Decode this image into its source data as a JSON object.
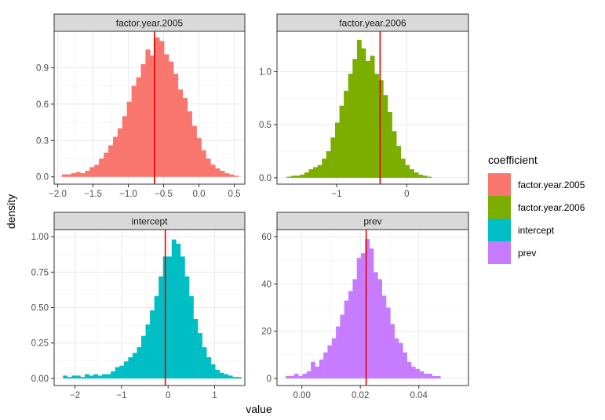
{
  "axes": {
    "xlabel": "value",
    "ylabel": "density"
  },
  "legend": {
    "title": "coefficient",
    "placement": "right",
    "items": [
      {
        "label": "factor.year.2005",
        "color": "#F8766D"
      },
      {
        "label": "factor.year.2006",
        "color": "#7CAE00"
      },
      {
        "label": "intercept",
        "color": "#00BFC4"
      },
      {
        "label": "prev",
        "color": "#C77CFF"
      }
    ]
  },
  "chart_data": [
    {
      "type": "bar",
      "title": "factor.year.2005",
      "color": "#F8766D",
      "vline": -0.63,
      "xlim": [
        -2.05,
        0.65
      ],
      "ylim": [
        -0.06,
        1.2
      ],
      "xticks": [
        -2.0,
        -1.5,
        -1.0,
        -0.5,
        0.0,
        0.5
      ],
      "xtick_labels": [
        "−2.0",
        "−1.5",
        "−1.0",
        "−0.5",
        "0.0",
        "0.5"
      ],
      "yticks": [
        0.0,
        0.3,
        0.6,
        0.9
      ],
      "ytick_labels": [
        "0.0",
        "0.3",
        "0.6",
        "0.9"
      ],
      "bin_width": 0.0658,
      "bins_start": -1.941,
      "values": [
        0.02,
        0.02,
        0.03,
        0.04,
        0.03,
        0.05,
        0.08,
        0.1,
        0.15,
        0.2,
        0.26,
        0.33,
        0.4,
        0.5,
        0.62,
        0.75,
        0.82,
        0.93,
        1.05,
        1.0,
        1.15,
        1.12,
        1.01,
        0.95,
        0.85,
        0.72,
        0.65,
        0.54,
        0.42,
        0.32,
        0.22,
        0.15,
        0.1,
        0.07,
        0.05,
        0.03,
        0.02,
        0.01
      ]
    },
    {
      "type": "bar",
      "title": "factor.year.2006",
      "color": "#7CAE00",
      "vline": -0.38,
      "xlim": [
        -1.85,
        0.88
      ],
      "ylim": [
        -0.06,
        1.38
      ],
      "xticks": [
        -1,
        0
      ],
      "xtick_labels": [
        "−1",
        "0"
      ],
      "yticks": [
        0.0,
        0.5,
        1.0
      ],
      "ytick_labels": [
        "0.0",
        "0.5",
        "1.0"
      ],
      "bin_width": 0.0625,
      "bins_start": -1.71,
      "values": [
        0.01,
        0.02,
        0.02,
        0.03,
        0.05,
        0.08,
        0.1,
        0.12,
        0.18,
        0.25,
        0.38,
        0.52,
        0.68,
        0.82,
        0.98,
        1.12,
        1.3,
        1.22,
        1.1,
        1.15,
        0.98,
        0.92,
        0.78,
        0.62,
        0.44,
        0.3,
        0.18,
        0.12,
        0.08,
        0.05,
        0.03,
        0.02,
        0.01
      ]
    },
    {
      "type": "bar",
      "title": "intercept",
      "color": "#00BFC4",
      "vline": -0.06,
      "xlim": [
        -2.45,
        1.65
      ],
      "ylim": [
        -0.05,
        1.05
      ],
      "xticks": [
        -2,
        -1,
        0,
        1
      ],
      "xtick_labels": [
        "−2",
        "−1",
        "0",
        "1"
      ],
      "yticks": [
        0.0,
        0.25,
        0.5,
        0.75,
        1.0
      ],
      "ytick_labels": [
        "0.00",
        "0.25",
        "0.50",
        "0.75",
        "1.00"
      ],
      "bin_width": 0.0935,
      "bins_start": -2.26,
      "values": [
        0.02,
        0.01,
        0.02,
        0.02,
        0.01,
        0.03,
        0.02,
        0.03,
        0.02,
        0.03,
        0.03,
        0.05,
        0.08,
        0.09,
        0.12,
        0.15,
        0.18,
        0.22,
        0.3,
        0.38,
        0.48,
        0.58,
        0.72,
        0.86,
        0.86,
        0.98,
        0.95,
        0.86,
        0.72,
        0.58,
        0.42,
        0.32,
        0.22,
        0.15,
        0.1,
        0.06,
        0.04,
        0.03,
        0.02,
        0.01,
        0.01
      ]
    },
    {
      "type": "bar",
      "title": "prev",
      "color": "#C77CFF",
      "vline": 0.022,
      "xlim": [
        -0.0085,
        0.057
      ],
      "ylim": [
        -3,
        63
      ],
      "xticks": [
        0.0,
        0.02,
        0.04
      ],
      "xtick_labels": [
        "0.00",
        "0.02",
        "0.04"
      ],
      "yticks": [
        0,
        20,
        40,
        60
      ],
      "ytick_labels": [
        "0",
        "20",
        "40",
        "60"
      ],
      "bin_width": 0.00143,
      "bins_start": -0.0055,
      "values": [
        1,
        1,
        2,
        1,
        2,
        3,
        7,
        5,
        8,
        11,
        14,
        17,
        22,
        27,
        33,
        37,
        42,
        51,
        53,
        59,
        55,
        45,
        42,
        35,
        30,
        23,
        17,
        15,
        11,
        7,
        5,
        4,
        3,
        2,
        2,
        1,
        1
      ]
    }
  ]
}
